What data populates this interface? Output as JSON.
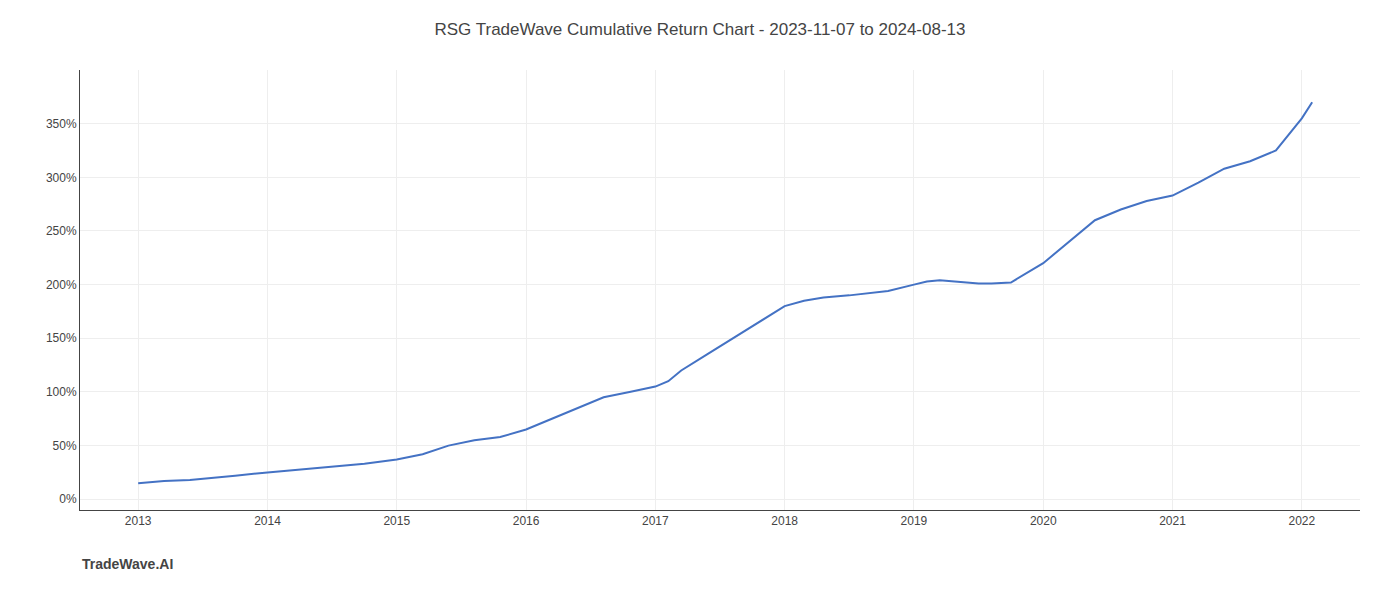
{
  "chart_data": {
    "type": "line",
    "title": "RSG TradeWave Cumulative Return Chart - 2023-11-07 to 2024-08-13",
    "annotations": [
      "TradeWave.AI"
    ],
    "x": [
      2013.0,
      2013.08,
      2013.2,
      2013.4,
      2013.6,
      2013.75,
      2014.0,
      2014.2,
      2014.5,
      2014.75,
      2015.0,
      2015.2,
      2015.4,
      2015.6,
      2015.8,
      2016.0,
      2016.2,
      2016.4,
      2016.6,
      2016.8,
      2017.0,
      2017.1,
      2017.2,
      2017.4,
      2017.6,
      2017.8,
      2018.0,
      2018.15,
      2018.3,
      2018.5,
      2018.65,
      2018.8,
      2019.0,
      2019.1,
      2019.2,
      2019.3,
      2019.4,
      2019.5,
      2019.6,
      2019.75,
      2020.0,
      2020.2,
      2020.4,
      2020.6,
      2020.8,
      2021.0,
      2021.2,
      2021.4,
      2021.6,
      2021.8,
      2022.0,
      2022.08
    ],
    "values": [
      15,
      16,
      17,
      18,
      20,
      22,
      25,
      27,
      30,
      33,
      37,
      42,
      50,
      55,
      58,
      65,
      75,
      85,
      95,
      100,
      105,
      110,
      120,
      135,
      150,
      165,
      180,
      185,
      188,
      190,
      192,
      194,
      200,
      203,
      204,
      203,
      202,
      201,
      201,
      202,
      220,
      240,
      260,
      270,
      278,
      283,
      295,
      308,
      315,
      325,
      355,
      370
    ],
    "color": "#4472c4",
    "xlim": [
      2012.55,
      2022.45
    ],
    "xticks": [
      2013,
      2014,
      2015,
      2016,
      2017,
      2018,
      2019,
      2020,
      2021,
      2022
    ],
    "ylim": [
      -10,
      400
    ],
    "yticks": [
      {
        "value": 0,
        "label": "0%"
      },
      {
        "value": 50,
        "label": "50%"
      },
      {
        "value": 100,
        "label": "100%"
      },
      {
        "value": 150,
        "label": "150%"
      },
      {
        "value": 200,
        "label": "200%"
      },
      {
        "value": 250,
        "label": "250%"
      },
      {
        "value": 300,
        "label": "300%"
      },
      {
        "value": 350,
        "label": "350%"
      }
    ],
    "grid": true
  }
}
